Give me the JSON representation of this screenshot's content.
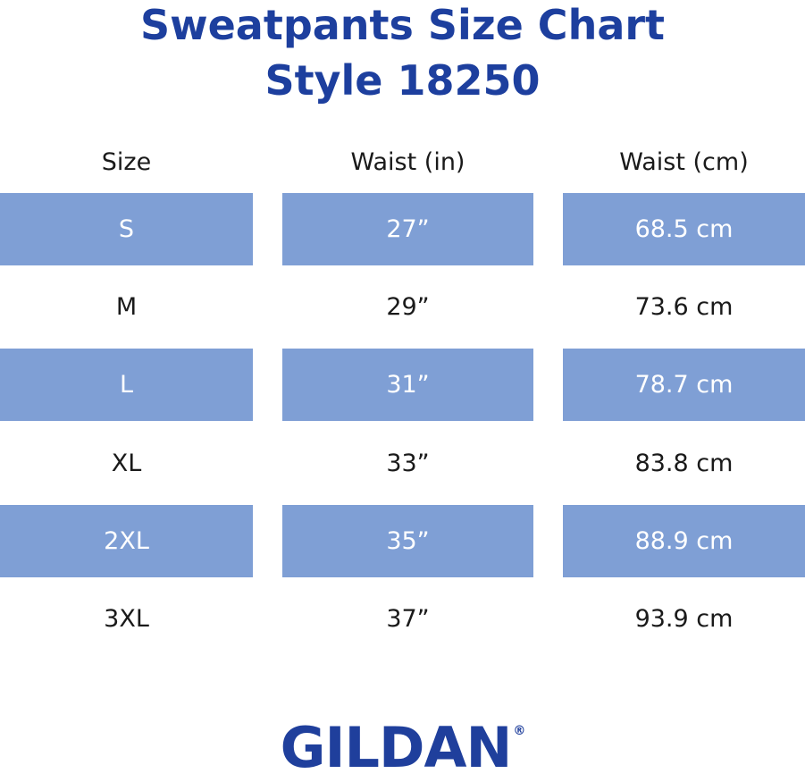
{
  "title": [
    "Sweatpants Size Chart",
    "Style 18250"
  ],
  "table": {
    "headers": [
      "Size",
      "Waist (in)",
      "Waist (cm)"
    ],
    "rows": [
      [
        "S",
        "27”",
        "68.5 cm"
      ],
      [
        "M",
        "29”",
        "73.6 cm"
      ],
      [
        "L",
        "31”",
        "78.7 cm"
      ],
      [
        "XL",
        "33”",
        "83.8 cm"
      ],
      [
        "2XL",
        "35”",
        "88.9 cm"
      ],
      [
        "3XL",
        "37”",
        "93.9 cm"
      ]
    ]
  },
  "logo": {
    "text": "GILDAN",
    "mark": "®"
  }
}
